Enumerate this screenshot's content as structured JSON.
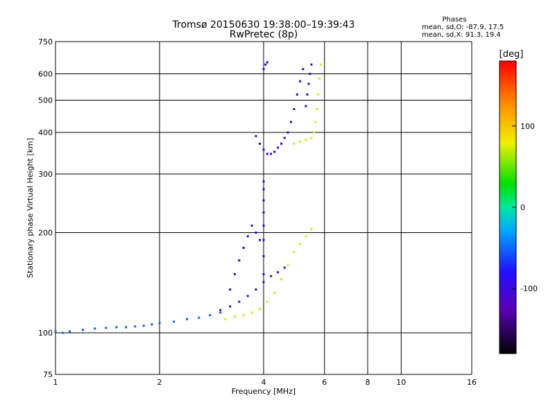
{
  "chart_data": {
    "type": "scatter",
    "title": "Tromsø 20150630 19:38:00–19:39:43",
    "subtitle": "RwPretec (8p)",
    "stats": {
      "heading": "Phases",
      "line1": "mean, sd,O: -87.9, 17.5",
      "line2": "mean, sd,X:  91.3, 19.4"
    },
    "xlabel": "Frequency [MHz]",
    "ylabel": "Stationary phase Virtual Height [km]",
    "x_scale": "log",
    "y_scale": "log",
    "xlim": [
      1,
      16
    ],
    "ylim": [
      75,
      750
    ],
    "x_ticks": [
      1,
      2,
      4,
      6,
      8,
      10,
      16
    ],
    "x_tick_labels": [
      "1",
      "2",
      "4",
      "6",
      "8",
      "10",
      "16"
    ],
    "y_ticks": [
      75,
      100,
      200,
      300,
      400,
      500,
      600,
      750
    ],
    "y_tick_labels": [
      "75",
      "100",
      "200",
      "300",
      "400",
      "500",
      "600",
      "750"
    ],
    "grid": true,
    "colorbar": {
      "label": "[deg]",
      "range": [
        -180,
        180
      ],
      "ticks": [
        -100,
        0,
        100
      ],
      "tick_labels": [
        "-100",
        "0",
        "100"
      ]
    },
    "traces": [
      {
        "name": "",
        "phase_deg": -65,
        "points": [
          [
            1.0,
            101
          ],
          [
            1.05,
            100
          ],
          [
            1.1,
            101
          ],
          [
            1.2,
            102
          ],
          [
            1.3,
            103
          ],
          [
            1.4,
            103.5
          ],
          [
            1.5,
            104
          ],
          [
            1.6,
            104
          ],
          [
            1.7,
            104.5
          ],
          [
            1.8,
            105
          ],
          [
            1.9,
            106
          ],
          [
            2.0,
            107
          ],
          [
            2.2,
            108
          ],
          [
            2.4,
            110
          ],
          [
            2.6,
            111
          ],
          [
            2.8,
            113
          ],
          [
            3.0,
            115
          ]
        ]
      },
      {
        "name": "",
        "phase_deg": -110,
        "points": [
          [
            3.0,
            117
          ],
          [
            3.2,
            120
          ],
          [
            3.4,
            124
          ],
          [
            3.6,
            129
          ],
          [
            3.8,
            135
          ],
          [
            4.0,
            142
          ],
          [
            4.2,
            148
          ],
          [
            4.4,
            152
          ],
          [
            4.6,
            157
          ]
        ]
      },
      {
        "name": "",
        "phase_deg": -105,
        "points": [
          [
            4.0,
            150
          ],
          [
            4.0,
            170
          ],
          [
            4.0,
            190
          ],
          [
            4.0,
            210
          ],
          [
            4.0,
            230
          ],
          [
            4.0,
            250
          ],
          [
            4.0,
            270
          ],
          [
            4.0,
            285
          ]
        ]
      },
      {
        "name": "",
        "phase_deg": -105,
        "points": [
          [
            3.2,
            135
          ],
          [
            3.3,
            150
          ],
          [
            3.4,
            165
          ],
          [
            3.5,
            180
          ],
          [
            3.6,
            195
          ],
          [
            3.7,
            210
          ],
          [
            3.8,
            200
          ],
          [
            3.9,
            190
          ]
        ]
      },
      {
        "name": "",
        "phase_deg": 95,
        "points": [
          [
            3.1,
            110
          ],
          [
            3.3,
            112
          ],
          [
            3.5,
            113
          ],
          [
            3.7,
            115
          ],
          [
            3.9,
            118
          ],
          [
            4.1,
            124
          ],
          [
            4.3,
            132
          ],
          [
            4.5,
            145
          ],
          [
            4.7,
            160
          ],
          [
            4.9,
            175
          ],
          [
            5.1,
            185
          ],
          [
            5.3,
            195
          ],
          [
            5.5,
            205
          ]
        ]
      },
      {
        "name": "",
        "phase_deg": -105,
        "points": [
          [
            3.8,
            390
          ],
          [
            3.9,
            370
          ],
          [
            4.0,
            355
          ],
          [
            4.1,
            345
          ],
          [
            4.2,
            345
          ],
          [
            4.3,
            350
          ],
          [
            4.4,
            360
          ],
          [
            4.5,
            370
          ],
          [
            4.6,
            385
          ],
          [
            4.7,
            400
          ],
          [
            4.8,
            430
          ],
          [
            4.9,
            470
          ],
          [
            5.0,
            520
          ],
          [
            5.1,
            570
          ],
          [
            5.2,
            620
          ]
        ]
      },
      {
        "name": "",
        "phase_deg": -105,
        "points": [
          [
            5.3,
            480
          ],
          [
            5.35,
            520
          ],
          [
            5.4,
            560
          ],
          [
            5.45,
            600
          ],
          [
            5.5,
            640
          ]
        ]
      },
      {
        "name": "",
        "phase_deg": 95,
        "points": [
          [
            4.9,
            370
          ],
          [
            5.1,
            375
          ],
          [
            5.3,
            380
          ],
          [
            5.5,
            385
          ],
          [
            5.6,
            400
          ],
          [
            5.65,
            430
          ],
          [
            5.7,
            470
          ],
          [
            5.75,
            520
          ],
          [
            5.8,
            580
          ],
          [
            5.85,
            640
          ]
        ]
      },
      {
        "name": "",
        "phase_deg": -105,
        "points": [
          [
            4.0,
            620
          ],
          [
            4.05,
            640
          ],
          [
            4.1,
            650
          ]
        ]
      }
    ]
  }
}
